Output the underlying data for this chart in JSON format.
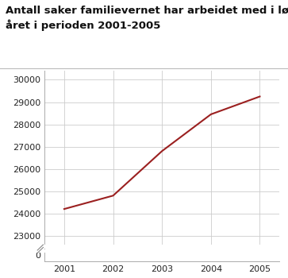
{
  "title_line1": "Antall saker familievernet har arbeidet med i løpet av",
  "title_line2": "året i perioden 2001-2005",
  "x": [
    2001,
    2001.5,
    2002,
    2003,
    2004,
    2005
  ],
  "y": [
    24200,
    24500,
    24800,
    26800,
    28450,
    29250
  ],
  "line_color": "#9b2020",
  "line_width": 1.5,
  "yticks_main": [
    23000,
    24000,
    25000,
    26000,
    27000,
    28000,
    29000,
    30000
  ],
  "xticks": [
    2001,
    2002,
    2003,
    2004,
    2005
  ],
  "xlim": [
    2000.6,
    2005.4
  ],
  "ylim_main": [
    22600,
    30400
  ],
  "ylim_zero": [
    -0.5,
    0.5
  ],
  "background_color": "#ffffff",
  "grid_color": "#cccccc",
  "title_fontsize": 9.5,
  "tick_fontsize": 8
}
